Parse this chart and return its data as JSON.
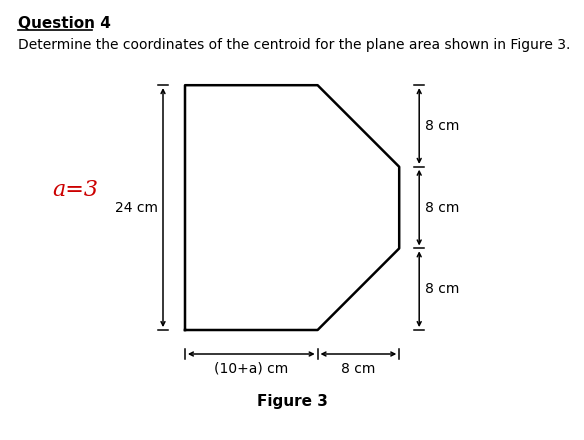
{
  "question_title": "Question 4",
  "question_text": "Determine the coordinates of the centroid for the plane area shown in Figure 3.",
  "a_label": "a=3",
  "dim_24": "24 cm",
  "dim_10a": "(10+a) cm",
  "dim_8_horiz": "8 cm",
  "dim_8_top": "8 cm",
  "dim_8_mid": "8 cm",
  "dim_8_bot": "8 cm",
  "fig_caption": "Figure 3",
  "a_color": "#cc0000",
  "shape_color": "#000000",
  "bg_color": "#ffffff",
  "poly_x": [
    0,
    0,
    13,
    21,
    21,
    13,
    0
  ],
  "poly_y": [
    0,
    24,
    24,
    16,
    8,
    0,
    0
  ],
  "figsize": [
    5.84,
    4.4
  ],
  "dpi": 100
}
